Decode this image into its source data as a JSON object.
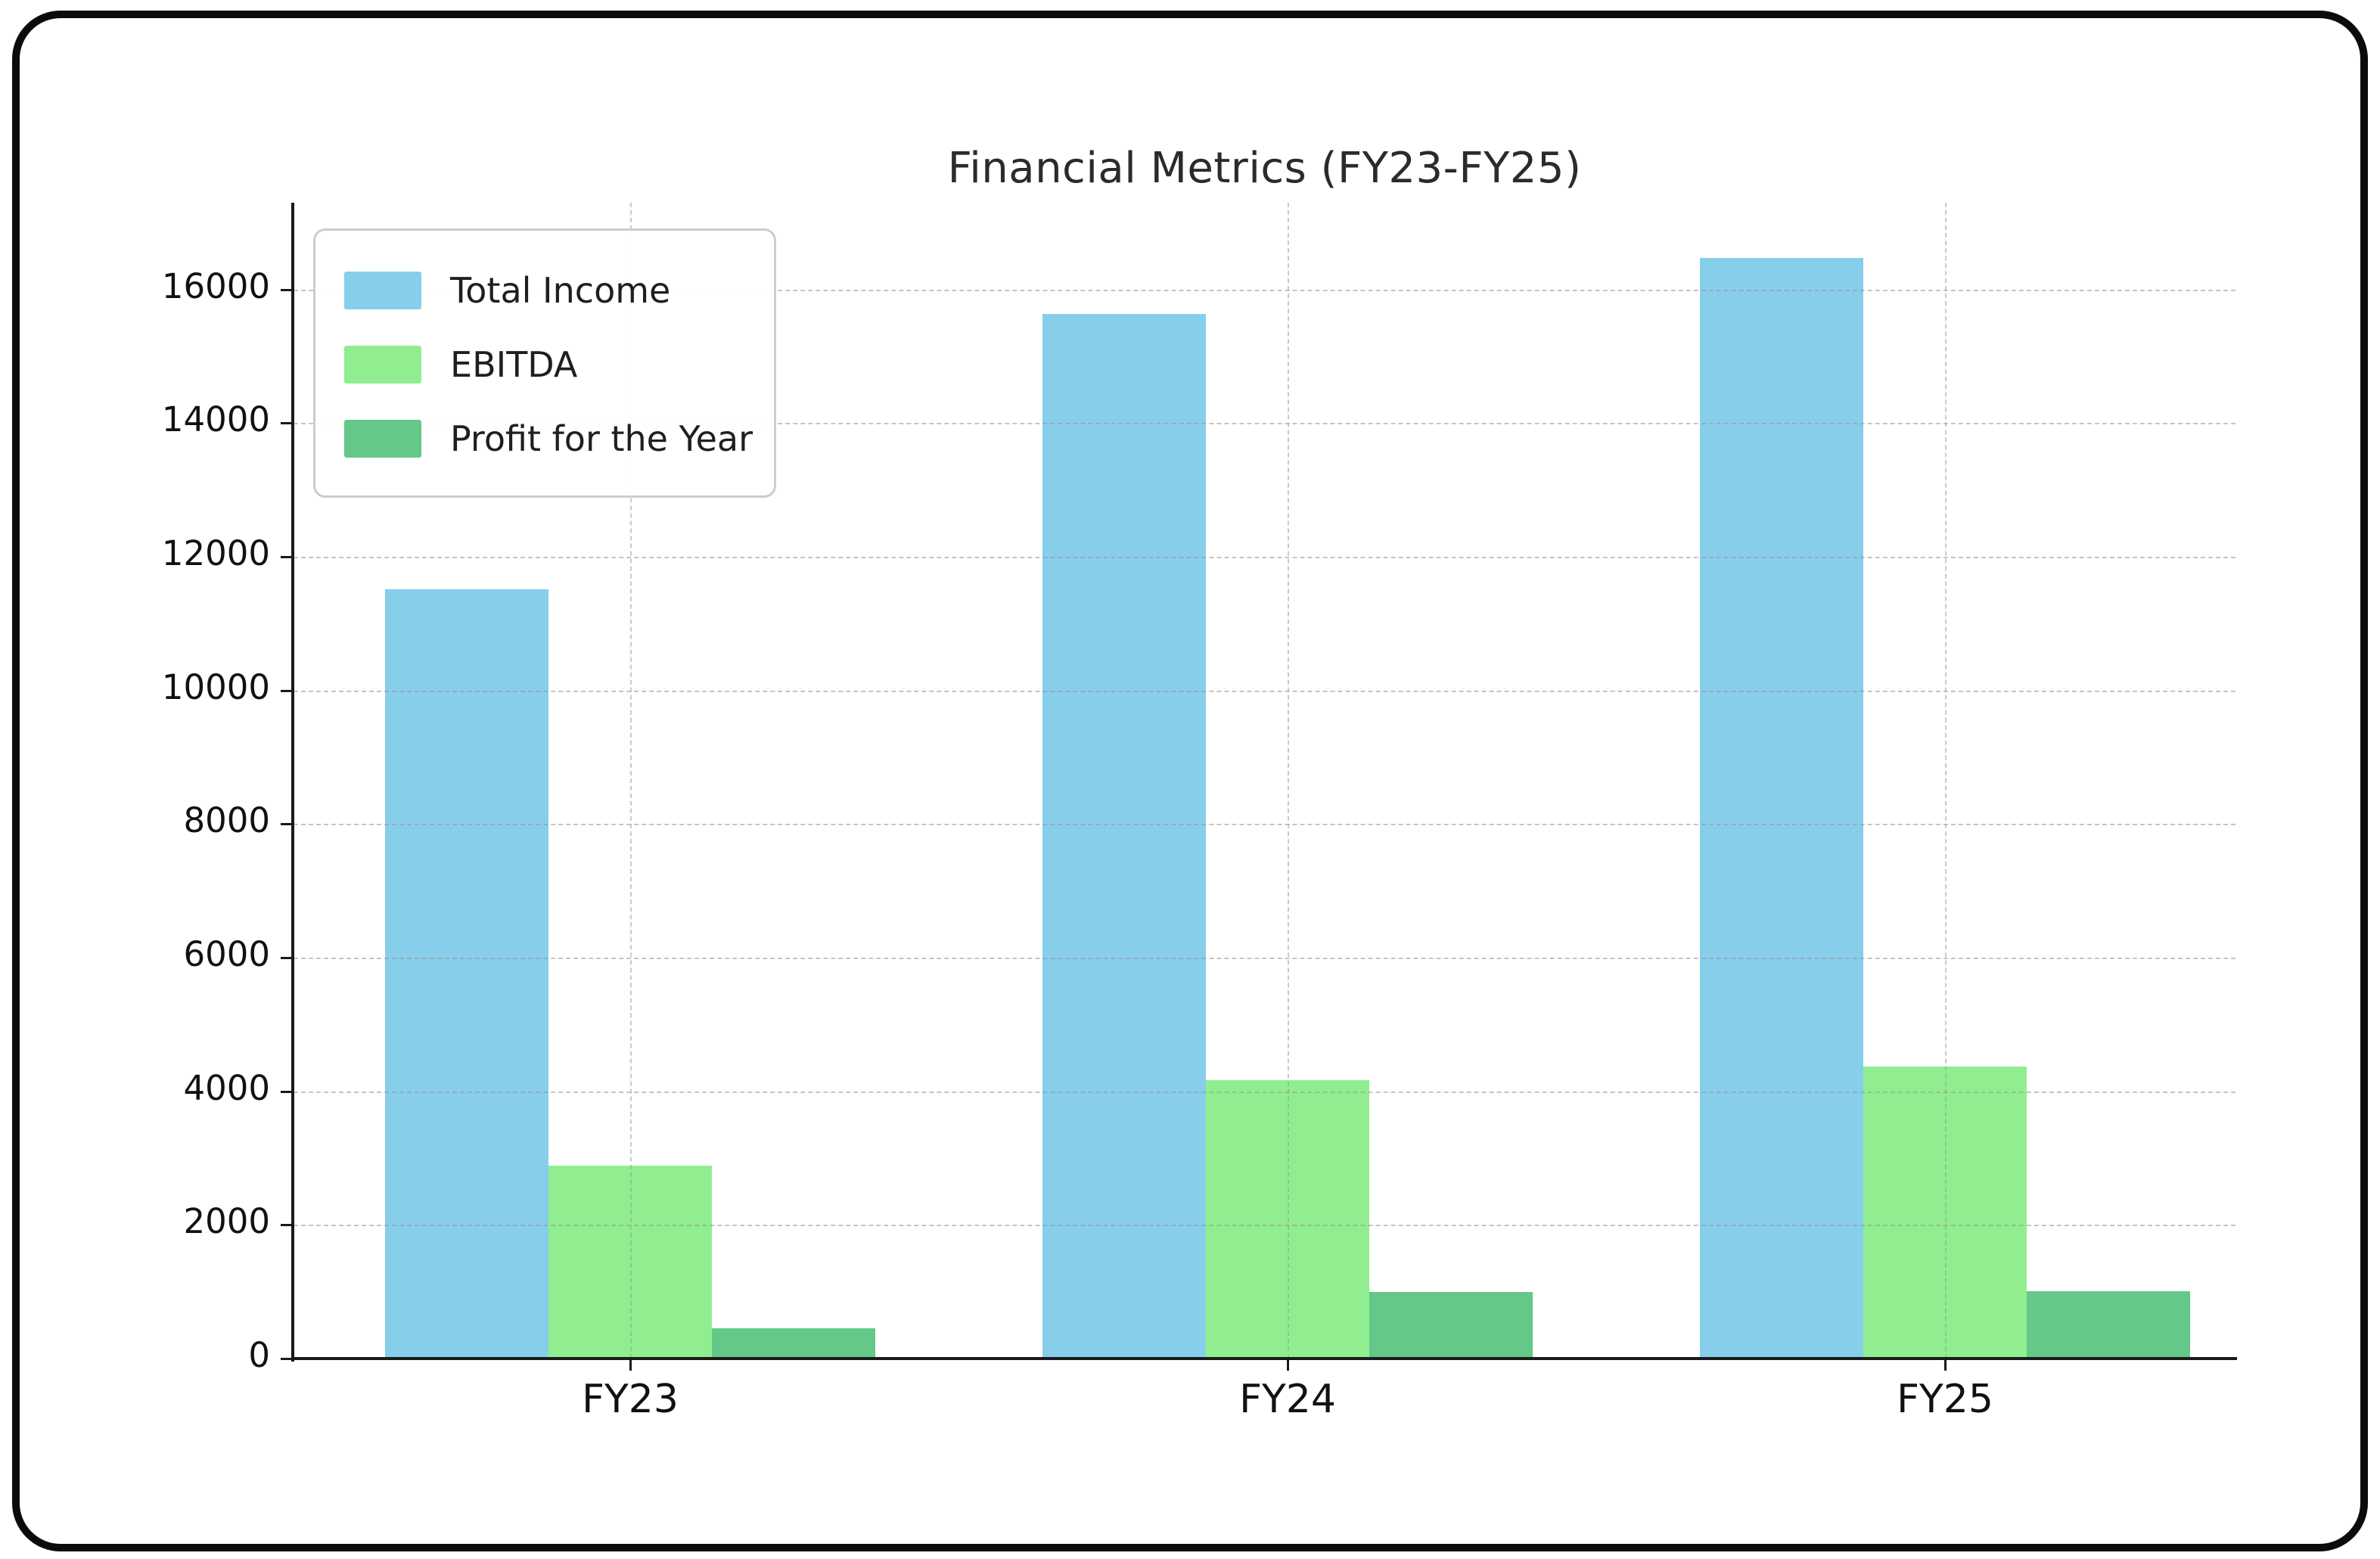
{
  "chart_data": {
    "type": "bar",
    "title": "Financial Metrics (FY23-FY25)",
    "categories": [
      "FY23",
      "FY24",
      "FY25"
    ],
    "series": [
      {
        "name": "Total Income",
        "color": "#87CEEB",
        "values": [
          11520,
          15640,
          16470
        ]
      },
      {
        "name": "EBITDA",
        "color": "#90EE90",
        "values": [
          2890,
          4170,
          4370
        ]
      },
      {
        "name": "Profit for the Year",
        "color": "#63C888",
        "values": [
          450,
          1000,
          1010
        ]
      }
    ],
    "xlabel": "",
    "ylabel": "",
    "ylim": [
      0,
      17300
    ],
    "yticks": [
      0,
      2000,
      4000,
      6000,
      8000,
      10000,
      12000,
      14000,
      16000
    ],
    "grid": "dashed, drawn over bars",
    "legend_position": "upper left",
    "colors": {
      "frame_border": "#0b0b0b",
      "axis": "#1a1a1a",
      "grid": "#969696",
      "title_text": "#2b2b2b",
      "tick_text": "#111111",
      "legend_border": "#cccccc",
      "background": "#ffffff"
    }
  }
}
